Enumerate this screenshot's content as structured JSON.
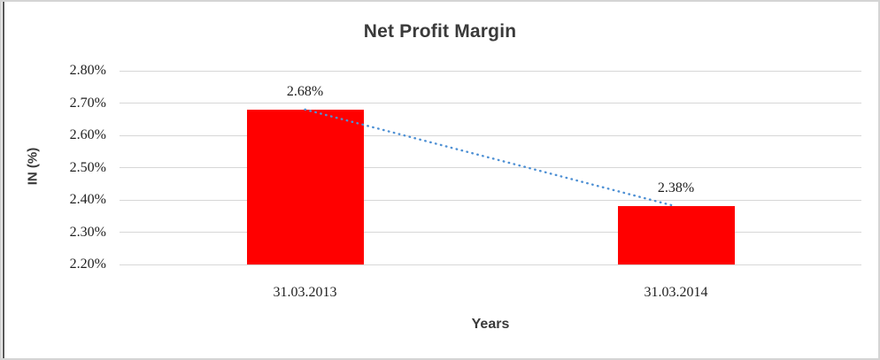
{
  "chart_data": {
    "type": "bar",
    "title": "Net Profit Margin",
    "xlabel": "Years",
    "ylabel": "IN (%)",
    "categories": [
      "31.03.2013",
      "31.03.2014"
    ],
    "values": [
      2.68,
      2.38
    ],
    "data_labels": [
      "2.68%",
      "2.38%"
    ],
    "y_ticks": [
      "2.80%",
      "2.70%",
      "2.60%",
      "2.50%",
      "2.40%",
      "2.30%",
      "2.20%"
    ],
    "ylim": [
      2.2,
      2.8
    ],
    "grid": true,
    "legend_position": "none",
    "bar_color": "#ff0000",
    "trendline": {
      "style": "dotted",
      "color": "#4e90d4",
      "from_value": 2.68,
      "to_value": 2.38
    },
    "gridline_color": "#d7d7d7",
    "text_color": "#1f1f1f",
    "heading_color": "#3a3a3a"
  }
}
